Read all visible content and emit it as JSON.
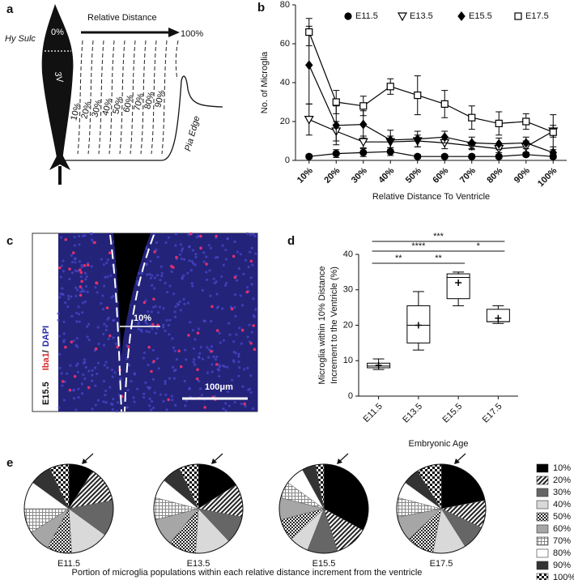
{
  "panel_a": {
    "label": "a",
    "arrow_label": "Relative Distance",
    "start": "0%",
    "end": "100%",
    "side_label": "Hy Sulc",
    "ventricle": "3V",
    "increments": [
      "10%",
      "20%",
      "30%",
      "40%",
      "50%",
      "60%",
      "70%",
      "80%",
      "90%"
    ],
    "edge": "Pia Edge"
  },
  "panel_c": {
    "label": "c",
    "age": "E15.5",
    "stain_1": "Iba1",
    "separator": "/",
    "stain_2": "DAPI",
    "distance": "10%",
    "scale_bar": "100μm"
  },
  "chart_data": [
    {
      "label": "b",
      "type": "line",
      "y_label": "No. of Microglia",
      "x_label": "Relative Distance To Ventricle",
      "categories": [
        "10%",
        "20%",
        "30%",
        "40%",
        "50%",
        "60%",
        "70%",
        "80%",
        "90%",
        "100%"
      ],
      "ylim": [
        0,
        80
      ],
      "yticks": [
        0,
        20,
        40,
        60,
        80
      ],
      "series": [
        {
          "name": "E11.5",
          "color": "#000000",
          "marker": "circle",
          "filled": true,
          "values": [
            2,
            3.5,
            4,
            4.5,
            2,
            2,
            2,
            2,
            3,
            2
          ],
          "errors": [
            1,
            2,
            2,
            2,
            1,
            1,
            1,
            1,
            1,
            1
          ]
        },
        {
          "name": "E13.5",
          "color": "#000000",
          "marker": "triangle-down",
          "filled": false,
          "values": [
            21,
            15,
            9.5,
            9.5,
            10,
            9,
            7.5,
            6,
            7,
            15
          ],
          "errors": [
            8,
            5,
            3,
            3,
            3,
            3,
            2,
            2,
            3,
            3
          ]
        },
        {
          "name": "E15.5",
          "color": "#000000",
          "marker": "diamond",
          "filled": true,
          "values": [
            49,
            18,
            18.5,
            10.5,
            11,
            12,
            9,
            8.5,
            9,
            4
          ],
          "errors": [
            20,
            10,
            7,
            5,
            4,
            3,
            3,
            3,
            3,
            3
          ]
        },
        {
          "name": "E17.5",
          "color": "#000000",
          "marker": "square",
          "filled": false,
          "values": [
            66,
            30,
            28,
            38,
            33.5,
            29,
            22,
            19,
            20,
            14.5
          ],
          "errors": [
            7,
            6,
            5,
            4,
            10,
            7,
            6,
            6,
            4,
            9
          ]
        }
      ]
    },
    {
      "label": "d",
      "type": "box",
      "y_label": [
        "Microglia within 10% Distance",
        "Increment to the Ventricle (%)"
      ],
      "x_label": "Embryonic Age",
      "categories": [
        "E11.5",
        "E13.5",
        "E15.5",
        "E17.5"
      ],
      "ylim": [
        0,
        40
      ],
      "yticks": [
        0,
        10,
        20,
        30,
        40
      ],
      "color": "#000000",
      "boxes": [
        {
          "min": 7.5,
          "q1": 8,
          "median": 8.5,
          "q3": 9.3,
          "max": 10.5,
          "mean": 8.7
        },
        {
          "min": 13,
          "q1": 15,
          "median": 20,
          "q3": 25.5,
          "max": 29.5,
          "mean": 20
        },
        {
          "min": 25.5,
          "q1": 27.5,
          "median": 33.5,
          "q3": 34.5,
          "max": 35,
          "mean": 32
        },
        {
          "min": 20.5,
          "q1": 21,
          "median": 21,
          "q3": 24.5,
          "max": 25.5,
          "mean": 22
        }
      ],
      "annotations": [
        {
          "label": "***",
          "between": [
            "E11.5",
            "E17.5"
          ]
        },
        {
          "label": "****",
          "between": [
            "E11.5",
            "E15.5"
          ]
        },
        {
          "label": "*",
          "between": [
            "E15.5",
            "E17.5"
          ]
        },
        {
          "label": "**",
          "between": [
            "E11.5",
            "E13.5"
          ]
        },
        {
          "label": "**",
          "between": [
            "E13.5",
            "E15.5"
          ]
        }
      ]
    },
    {
      "label": "e",
      "type": "pie",
      "caption": "Portion of microglia populations within each relative distance increment from the ventricle",
      "categories": [
        "10%",
        "20%",
        "30%",
        "40%",
        "50%",
        "60%",
        "70%",
        "80%",
        "90%",
        "100%"
      ],
      "colors": [
        "#000000",
        "url(#pat-stripe)",
        "#666666",
        "#d9d9d9",
        "url(#pat-cross)",
        "#a6a6a6",
        "url(#pat-grid)",
        "#ffffff",
        "#333333",
        "url(#pat-check)"
      ],
      "series": [
        {
          "name": "E11.5",
          "values": [
            9,
            13,
            13,
            14,
            9,
            8,
            9,
            10,
            8,
            7
          ]
        },
        {
          "name": "E13.5",
          "values": [
            16,
            12,
            10,
            13,
            10,
            10,
            8,
            7,
            7,
            7
          ]
        },
        {
          "name": "E15.5",
          "values": [
            33,
            12,
            11,
            7,
            8,
            8,
            6,
            7,
            5,
            3
          ]
        },
        {
          "name": "E17.5",
          "values": [
            22,
            10,
            9,
            12,
            10,
            9,
            7,
            6,
            6,
            9
          ]
        }
      ]
    }
  ]
}
